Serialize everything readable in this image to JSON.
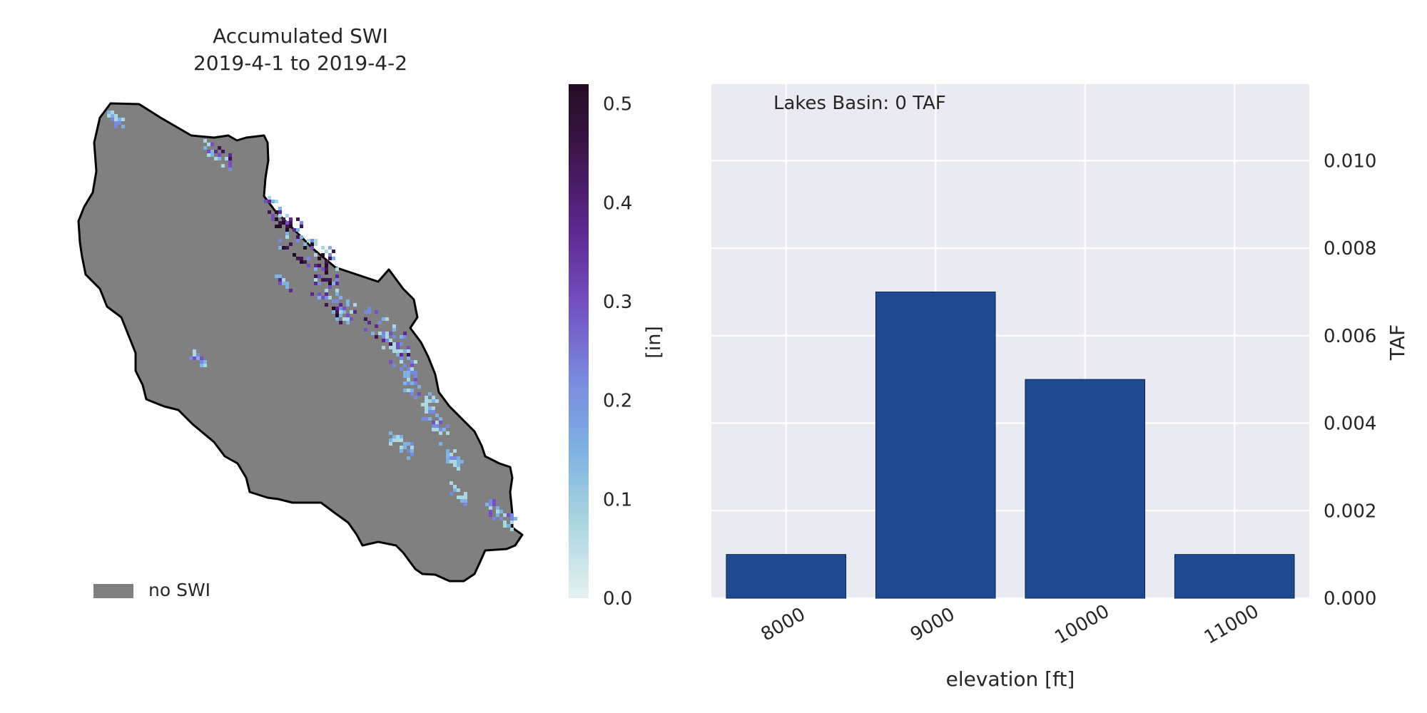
{
  "map_panel": {
    "title_line1": "Accumulated SWI",
    "title_line2": "2019-4-1 to 2019-4-2",
    "legend_label": "no SWI",
    "no_swi_color": "#808080",
    "outline_color": "#000000",
    "colorbar": {
      "label": "[in]",
      "min": 0.0,
      "max": 0.52,
      "ticks": [
        "0.0",
        "0.1",
        "0.2",
        "0.3",
        "0.4",
        "0.5"
      ],
      "tick_values": [
        0.0,
        0.1,
        0.2,
        0.3,
        0.4,
        0.5
      ],
      "colormap": "dense",
      "colors": [
        "#e6f1f1",
        "#abd7e0",
        "#7fb2e3",
        "#7889de",
        "#7450c2",
        "#5e2891",
        "#3f1651",
        "#230d21"
      ]
    }
  },
  "chart_data": {
    "type": "bar",
    "annotation": "Lakes Basin: 0 TAF",
    "categories": [
      "8000",
      "9000",
      "10000",
      "11000"
    ],
    "values": [
      0.001,
      0.007,
      0.005,
      0.001
    ],
    "xlabel": "elevation [ft]",
    "ylabel": "TAF",
    "ylim": [
      0,
      0.01175
    ],
    "yticks": [
      "0.000",
      "0.002",
      "0.004",
      "0.006",
      "0.008",
      "0.010"
    ],
    "ytick_values": [
      0,
      0.002,
      0.004,
      0.006,
      0.008,
      0.01
    ],
    "xtick_rotation": 30,
    "yaxis_side": "right",
    "grid": true,
    "bar_color": "#1f4a8f",
    "background": "#eaeaf2"
  }
}
